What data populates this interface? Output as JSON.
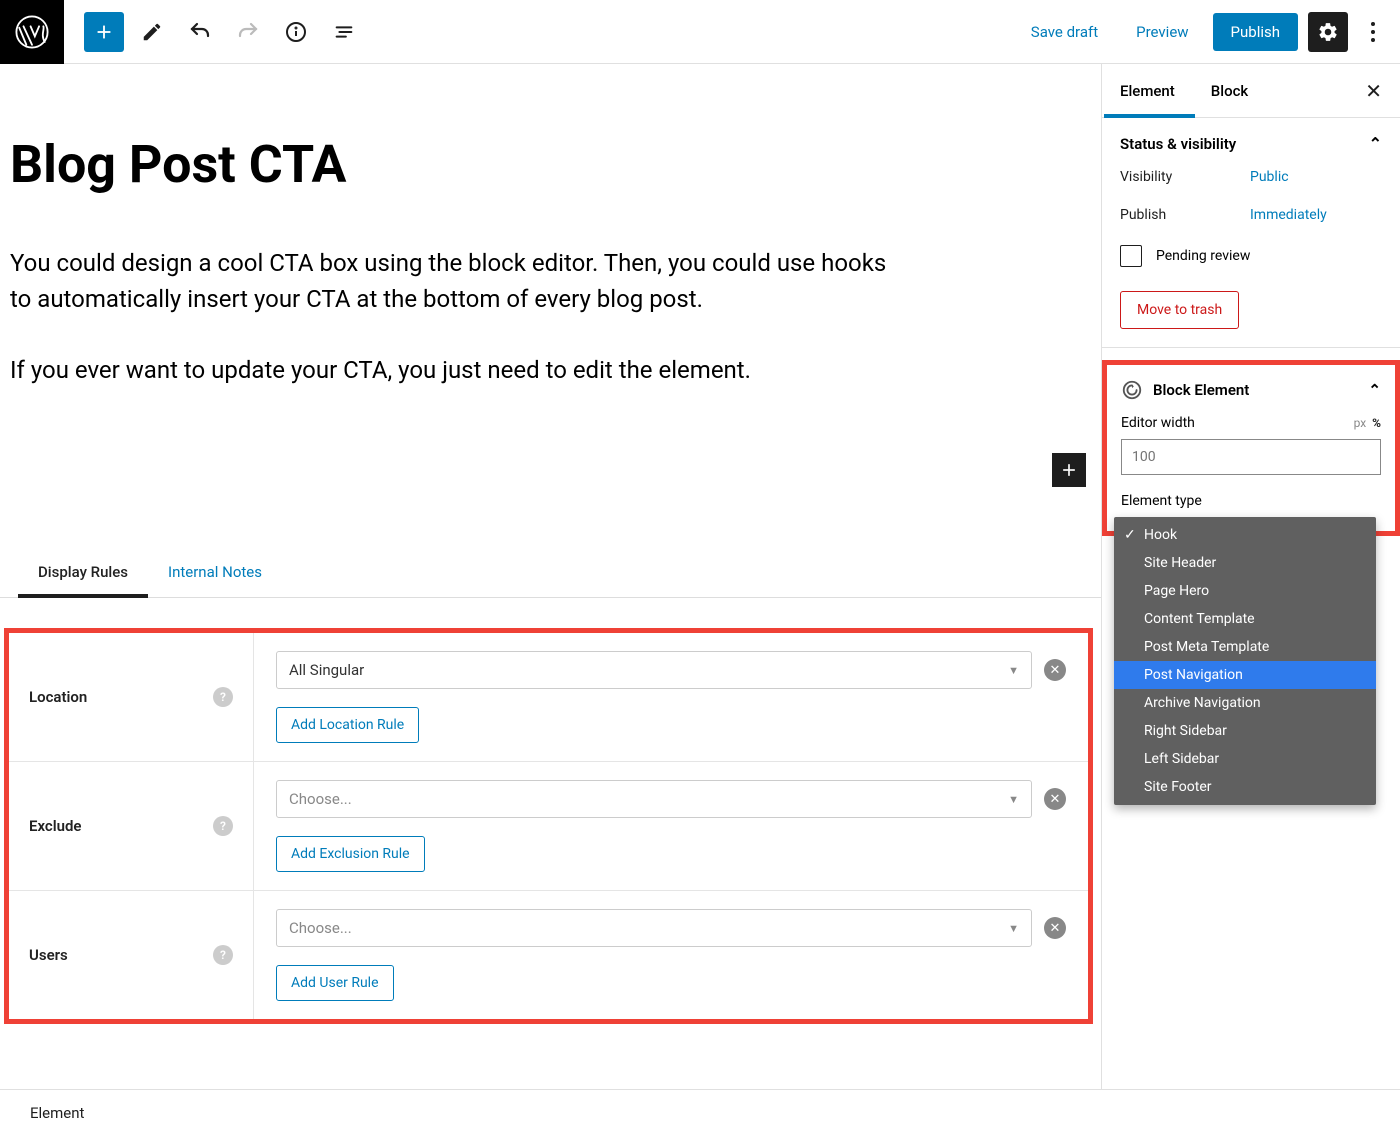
{
  "toolbar": {
    "save_draft": "Save draft",
    "preview": "Preview",
    "publish": "Publish"
  },
  "sidebar": {
    "tabs": {
      "element": "Element",
      "block": "Block"
    },
    "status": {
      "title": "Status & visibility",
      "visibility_label": "Visibility",
      "visibility_value": "Public",
      "publish_label": "Publish",
      "publish_value": "Immediately",
      "pending_review": "Pending review",
      "trash": "Move to trash"
    },
    "block_element": {
      "title": "Block Element",
      "editor_width_label": "Editor width",
      "editor_width_placeholder": "100",
      "unit_px": "px",
      "unit_percent": "%",
      "element_type_label": "Element type"
    },
    "dropdown": {
      "items": [
        "Hook",
        "Site Header",
        "Page Hero",
        "Content Template",
        "Post Meta Template",
        "Post Navigation",
        "Archive Navigation",
        "Right Sidebar",
        "Left Sidebar",
        "Site Footer"
      ],
      "selected_index": 0,
      "highlighted_index": 5
    }
  },
  "post": {
    "title": "Blog Post CTA",
    "p1": "You could design a cool CTA box using the block editor. Then, you could use hooks to automatically insert your CTA at the bottom of every blog post.",
    "p2": "If you ever want to update your CTA, you just need to edit the element."
  },
  "bottom_tabs": {
    "display_rules": "Display Rules",
    "internal_notes": "Internal Notes"
  },
  "rules": {
    "location": {
      "label": "Location",
      "value": "All Singular",
      "add": "Add Location Rule"
    },
    "exclude": {
      "label": "Exclude",
      "placeholder": "Choose...",
      "add": "Add Exclusion Rule"
    },
    "users": {
      "label": "Users",
      "placeholder": "Choose...",
      "add": "Add User Rule"
    }
  },
  "footer": "Element"
}
